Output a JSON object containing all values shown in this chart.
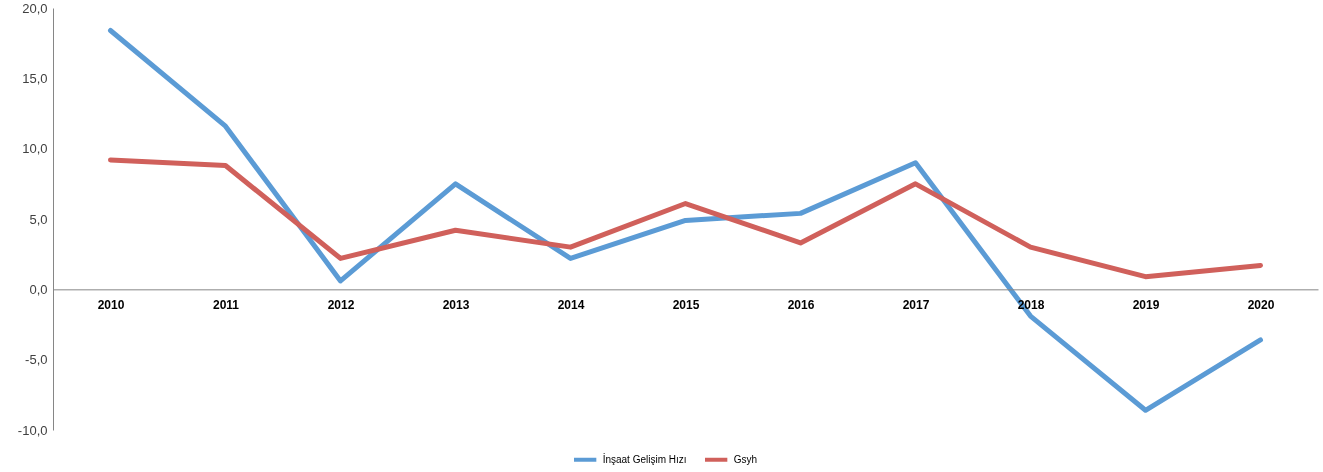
{
  "chart_data": {
    "type": "line",
    "categories": [
      "2010",
      "2011",
      "2012",
      "2013",
      "2014",
      "2015",
      "2016",
      "2017",
      "2018",
      "2019",
      "2020"
    ],
    "series": [
      {
        "name": "İnşaat Gelişim Hızı",
        "color": "#5b9bd5",
        "values": [
          18.4,
          11.6,
          0.6,
          7.5,
          2.2,
          4.9,
          5.4,
          9.0,
          -1.9,
          -8.6,
          -3.6
        ]
      },
      {
        "name": "Gsyh",
        "color": "#d0605b",
        "values": [
          9.2,
          8.8,
          2.2,
          4.2,
          3.0,
          6.1,
          3.3,
          7.5,
          3.0,
          0.9,
          1.7
        ]
      }
    ],
    "ylim": [
      -10,
      20
    ],
    "yticks": [
      {
        "value": -10,
        "label": "-10,0"
      },
      {
        "value": -5,
        "label": "-5,0"
      },
      {
        "value": 0,
        "label": "0,0"
      },
      {
        "value": 5,
        "label": "5,0"
      },
      {
        "value": 10,
        "label": "10,0"
      },
      {
        "value": 15,
        "label": "15,0"
      },
      {
        "value": 20,
        "label": "20,0"
      }
    ],
    "grid": false,
    "legend": "bottom",
    "marker": "none",
    "line_style": "solid"
  }
}
